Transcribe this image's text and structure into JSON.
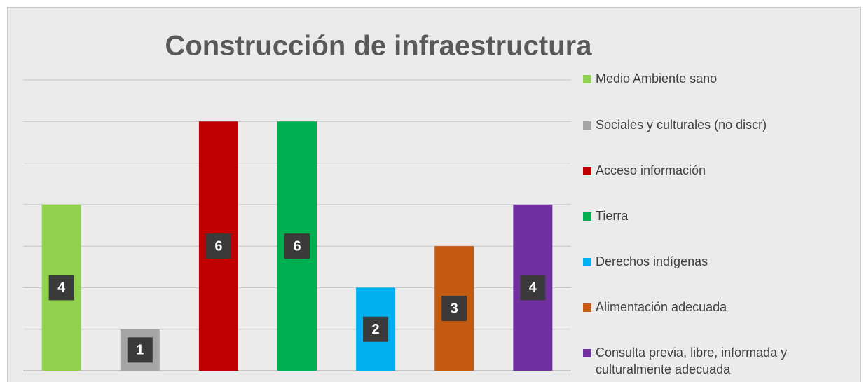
{
  "chart_data": {
    "type": "bar",
    "title": "Construcción de infraestructura",
    "series": [
      {
        "name": "Medio Ambiente sano",
        "color": "#92d050",
        "values": [
          4
        ]
      },
      {
        "name": "Sociales y culturales (no discr)",
        "color": "#a5a5a5",
        "values": [
          1
        ]
      },
      {
        "name": "Acceso información",
        "color": "#c00000",
        "values": [
          6
        ]
      },
      {
        "name": "Tierra",
        "color": "#00b050",
        "values": [
          6
        ]
      },
      {
        "name": "Derechos indígenas",
        "color": "#00b0f0",
        "values": [
          2
        ]
      },
      {
        "name": "Alimentación adecuada",
        "color": "#c55a11",
        "values": [
          3
        ]
      },
      {
        "name": "Consulta previa, libre, informada y culturalmente adecuada",
        "color": "#7030a0",
        "values": [
          4
        ]
      }
    ],
    "ylim": [
      0,
      7
    ],
    "yticks": [
      0,
      1,
      2,
      3,
      4,
      5,
      6,
      7
    ],
    "grid": true,
    "legend": "right"
  }
}
